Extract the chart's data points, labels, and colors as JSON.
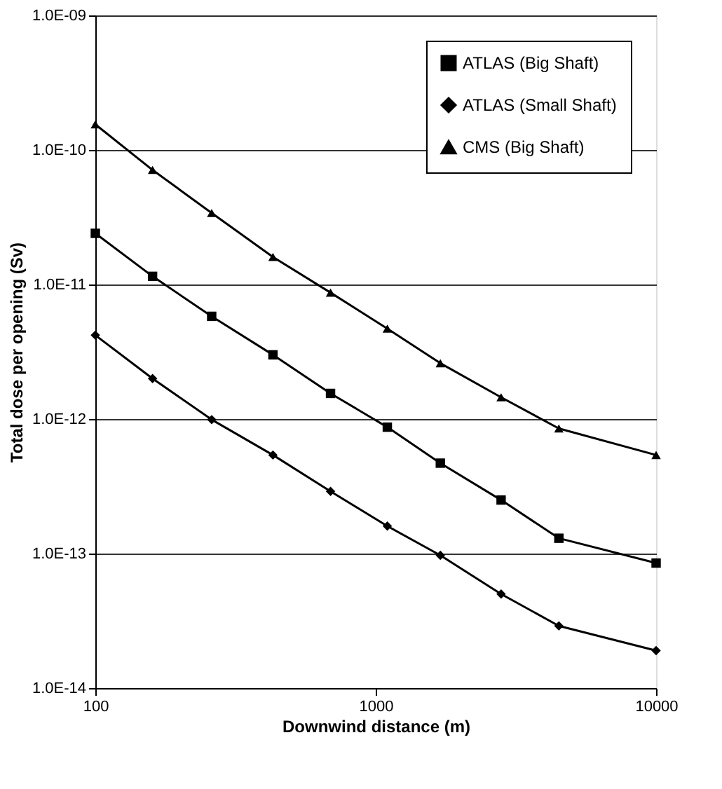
{
  "chart_data": {
    "type": "line",
    "xlabel": "Downwind distance (m)",
    "ylabel": "Total dose per opening (Sv)",
    "x": [
      100,
      160,
      260,
      430,
      690,
      1100,
      1700,
      2800,
      4500,
      10000
    ],
    "series": [
      {
        "name": "ATLAS (Big Shaft)",
        "color": "#000000",
        "marker": "square",
        "values": [
          2.4e-11,
          1.15e-11,
          5.8e-12,
          3e-12,
          1.55e-12,
          8.7e-13,
          4.7e-13,
          2.5e-13,
          1.3e-13,
          8.5e-14
        ]
      },
      {
        "name": "ATLAS (Small Shaft)",
        "color": "#000000",
        "marker": "diamond",
        "values": [
          4.2e-12,
          2e-12,
          9.9e-13,
          5.4e-13,
          2.9e-13,
          1.6e-13,
          9.7e-14,
          5e-14,
          2.9e-14,
          1.9e-14
        ]
      },
      {
        "name": "CMS (Big Shaft)",
        "color": "#000000",
        "marker": "triangle",
        "values": [
          1.55e-10,
          7.1e-11,
          3.4e-11,
          1.6e-11,
          8.7e-12,
          4.7e-12,
          2.6e-12,
          1.45e-12,
          8.5e-13,
          5.4e-13
        ]
      }
    ],
    "log": "xy",
    "xlim": [
      100,
      10000
    ],
    "xticks": [
      100,
      1000,
      10000
    ],
    "ylim": [
      1e-14,
      1e-09
    ],
    "yticks": [
      {
        "value": 1e-14,
        "label": "1.0E-14"
      },
      {
        "value": 1e-13,
        "label": "1.0E-13"
      },
      {
        "value": 1e-12,
        "label": "1.0E-12"
      },
      {
        "value": 1e-11,
        "label": "1.0E-11"
      },
      {
        "value": 1e-10,
        "label": "1.0E-10"
      },
      {
        "value": 1e-09,
        "label": "1.0E-09"
      }
    ],
    "grid": "y",
    "legend": "top right",
    "line_style": "solid"
  }
}
